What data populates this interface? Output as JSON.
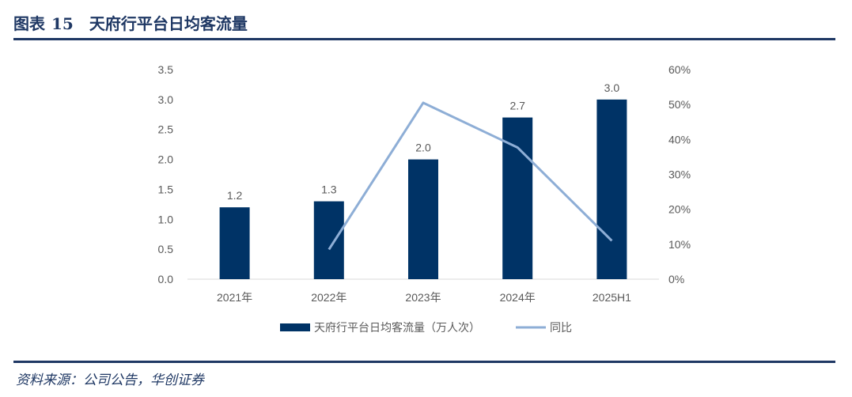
{
  "header": {
    "figure_label": "图表",
    "figure_number": "15",
    "title": "天府行平台日均客流量"
  },
  "source": "资料来源：公司公告，华创证券",
  "colors": {
    "bar": "#003366",
    "line": "#8eaed6",
    "rule": "#1f3864",
    "axis_text": "#595959"
  },
  "chart_data": {
    "type": "bar",
    "categories": [
      "2021年",
      "2022年",
      "2023年",
      "2024年",
      "2025H1"
    ],
    "series": [
      {
        "name": "天府行平台日均客流量（万人次）",
        "type": "bar",
        "axis": "left",
        "values": [
          1.2,
          1.3,
          2.0,
          2.7,
          3.0
        ],
        "labels": [
          "1.2",
          "1.3",
          "2.0",
          "2.7",
          "3.0"
        ]
      },
      {
        "name": "同比",
        "type": "line",
        "axis": "right",
        "values": [
          null,
          0.085,
          0.505,
          0.377,
          0.11
        ]
      }
    ],
    "y_left": {
      "range": [
        0,
        3.5
      ],
      "ticks": [
        "0.0",
        "0.5",
        "1.0",
        "1.5",
        "2.0",
        "2.5",
        "3.0",
        "3.5"
      ]
    },
    "y_right": {
      "range": [
        0,
        0.6
      ],
      "ticks": [
        "0%",
        "10%",
        "20%",
        "30%",
        "40%",
        "50%",
        "60%"
      ]
    },
    "grid": false,
    "legend_position": "bottom"
  }
}
